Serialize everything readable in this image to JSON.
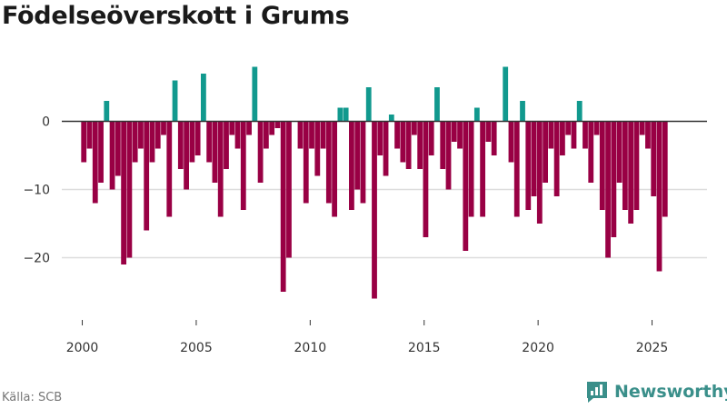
{
  "title": "Födelseöverskott i Grums",
  "source": "Källa: SCB",
  "brand": "Newsworthy",
  "colors": {
    "positive": "#11998e",
    "negative": "#990044",
    "zero_line": "#333333",
    "grid": "#dddddd"
  },
  "chart_data": {
    "type": "bar",
    "title": "Födelseöverskott i Grums",
    "xlabel": "",
    "ylabel": "",
    "xlim": [
      1999.6,
      2027.2
    ],
    "ylim": [
      -27,
      9
    ],
    "x_ticks": [
      2000,
      2005,
      2010,
      2015,
      2020,
      2025
    ],
    "y_ticks": [
      0,
      -10,
      -20
    ],
    "y_tick_labels": [
      "0",
      "−10",
      "−20"
    ],
    "grid": "horizontal",
    "frequency": "quarterly",
    "series": [
      {
        "start_year": 2000,
        "values": [
          -6,
          -4,
          -12,
          -9,
          3,
          -10,
          -8,
          -21,
          -20,
          -6,
          -4,
          -16,
          -6,
          -4,
          -2,
          -14,
          6,
          -7,
          -10,
          -6,
          -5,
          7,
          -6,
          -9,
          -14,
          -7,
          -2,
          -4,
          -13,
          -2,
          8,
          -9,
          -4,
          -2,
          -1,
          -25,
          -20,
          0,
          -4,
          -12,
          -4,
          -8,
          -4,
          -12,
          -14,
          2,
          2,
          -13,
          -10,
          -12,
          5,
          -26,
          -5,
          -8,
          1,
          -4,
          -6,
          -7,
          -2,
          -7,
          -17,
          -5,
          5,
          -7,
          -10,
          -3,
          -4,
          -19,
          -14,
          2,
          -14,
          -3,
          -5,
          0,
          8,
          -6,
          -14,
          3,
          -13,
          -11,
          -15,
          -9,
          -4,
          -11,
          -5,
          -2,
          -4,
          3,
          -4,
          -9,
          -2,
          -13,
          -20,
          -17,
          -9,
          -13,
          -15,
          -13,
          -2,
          -4,
          -11,
          -22,
          -14
        ]
      }
    ]
  }
}
